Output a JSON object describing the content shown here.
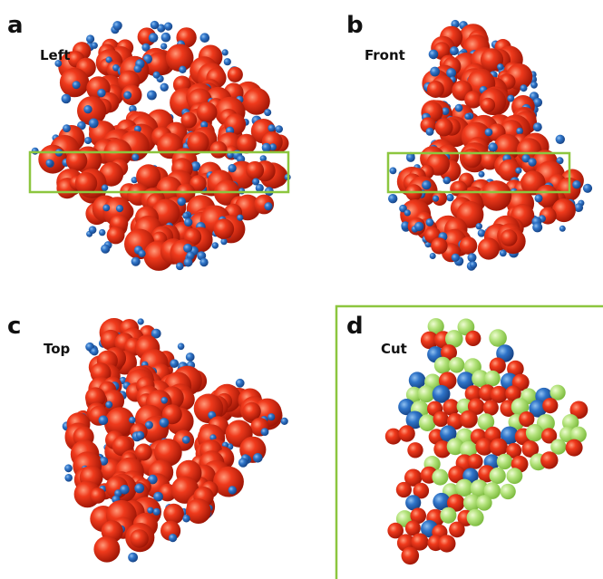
{
  "panels": [
    {
      "letter": "a",
      "label": "Left"
    },
    {
      "letter": "b",
      "label": "Front"
    },
    {
      "letter": "c",
      "label": "Top"
    },
    {
      "letter": "d",
      "label": "Cut"
    }
  ]
}
